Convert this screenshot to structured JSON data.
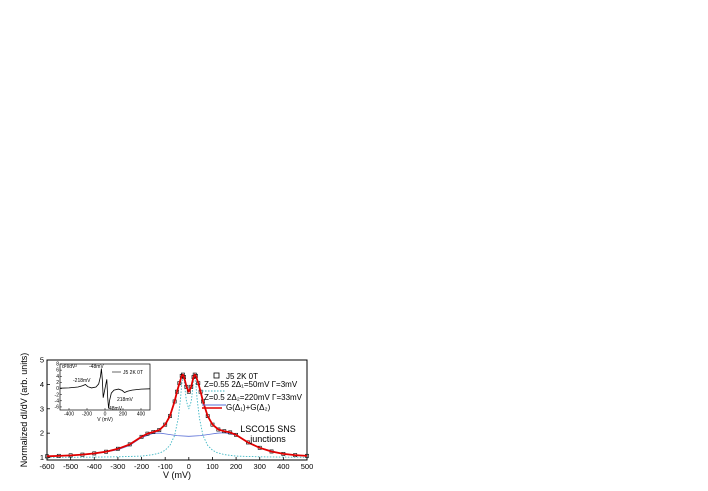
{
  "chart_data": [
    {
      "type": "line",
      "xlabel": "V (mV)",
      "ylabel": "Normalized dI/dV (arb. units)",
      "xlim": [
        -600,
        500
      ],
      "ylim": [
        0.9,
        5
      ],
      "xticks": [
        -600,
        -500,
        -400,
        -300,
        -200,
        -100,
        0,
        100,
        200,
        300,
        400,
        500
      ],
      "yticks": [
        1,
        2,
        3,
        4,
        5
      ],
      "grid": false,
      "legend_position": "right",
      "legend": [
        {
          "label": "J5  2K  0T",
          "style": "square-marker",
          "color": "#000000"
        },
        {
          "label": "Z=0.55  2Δ₁=50mV  Γ=3mV",
          "style": "dotted",
          "color": "#3fb7c4"
        },
        {
          "label": "Z=0.5  2Δ₂=220mV  Γ=33mV",
          "style": "solid",
          "color": "#5a6fd6"
        },
        {
          "label": "G(Δ₁)+G(Δ₂)",
          "style": "solid",
          "color": "#e00000"
        }
      ],
      "annotation": [
        "LSCO15 SNS",
        "junctions"
      ],
      "series": [
        {
          "name": "J5  2K  0T",
          "color": "#000000",
          "x": [
            -600,
            -550,
            -500,
            -450,
            -400,
            -350,
            -300,
            -250,
            -200,
            -175,
            -150,
            -125,
            -100,
            -80,
            -60,
            -50,
            -40,
            -30,
            -25,
            -20,
            -10,
            0,
            10,
            20,
            25,
            30,
            40,
            50,
            60,
            80,
            100,
            125,
            150,
            175,
            200,
            250,
            300,
            350,
            400,
            450,
            500
          ],
          "y": [
            1.05,
            1.07,
            1.09,
            1.12,
            1.17,
            1.24,
            1.36,
            1.54,
            1.85,
            1.98,
            2.05,
            2.13,
            2.35,
            2.7,
            3.3,
            3.7,
            4.05,
            4.35,
            4.4,
            4.3,
            3.9,
            3.7,
            3.9,
            4.3,
            4.4,
            4.35,
            4.05,
            3.7,
            3.3,
            2.7,
            2.35,
            2.15,
            2.08,
            2.03,
            1.93,
            1.62,
            1.4,
            1.25,
            1.15,
            1.1,
            1.07
          ]
        },
        {
          "name": "Z=0.55  2Δ₁=50mV  Γ=3mV",
          "color": "#3fb7c4",
          "x": [
            -600,
            -500,
            -400,
            -300,
            -200,
            -150,
            -120,
            -100,
            -80,
            -60,
            -45,
            -35,
            -30,
            -25,
            -20,
            -15,
            -10,
            0,
            10,
            15,
            20,
            25,
            30,
            35,
            45,
            60,
            80,
            100,
            120,
            150,
            200,
            300,
            400,
            500
          ],
          "y": [
            1.01,
            1.01,
            1.02,
            1.03,
            1.06,
            1.12,
            1.2,
            1.3,
            1.5,
            1.9,
            2.6,
            3.4,
            4.0,
            4.3,
            4.2,
            3.7,
            3.3,
            3.0,
            3.3,
            3.7,
            4.2,
            4.3,
            4.0,
            3.4,
            2.6,
            1.9,
            1.5,
            1.3,
            1.2,
            1.12,
            1.06,
            1.03,
            1.02,
            1.01
          ]
        },
        {
          "name": "Z=0.5  2Δ₂=220mV  Γ=33mV",
          "color": "#5a6fd6",
          "x": [
            -600,
            -500,
            -400,
            -300,
            -250,
            -200,
            -150,
            -120,
            -100,
            -50,
            0,
            50,
            100,
            120,
            150,
            200,
            250,
            300,
            400,
            500
          ],
          "y": [
            1.05,
            1.08,
            1.15,
            1.32,
            1.5,
            1.82,
            2.0,
            2.0,
            1.97,
            1.9,
            1.87,
            1.9,
            1.97,
            2.0,
            2.02,
            1.92,
            1.62,
            1.4,
            1.15,
            1.07
          ]
        },
        {
          "name": "G(Δ₁)+G(Δ₂)",
          "color": "#e00000",
          "x": [
            -600,
            -550,
            -500,
            -450,
            -400,
            -350,
            -300,
            -250,
            -200,
            -175,
            -150,
            -125,
            -100,
            -80,
            -60,
            -50,
            -40,
            -30,
            -25,
            -20,
            -10,
            0,
            10,
            20,
            25,
            30,
            40,
            50,
            60,
            80,
            100,
            125,
            150,
            175,
            200,
            250,
            300,
            350,
            400,
            450,
            500
          ],
          "y": [
            1.05,
            1.07,
            1.09,
            1.12,
            1.17,
            1.24,
            1.36,
            1.54,
            1.85,
            1.98,
            2.05,
            2.13,
            2.35,
            2.7,
            3.3,
            3.7,
            4.05,
            4.35,
            4.4,
            4.3,
            3.9,
            3.7,
            3.9,
            4.3,
            4.4,
            4.35,
            4.05,
            3.7,
            3.3,
            2.7,
            2.35,
            2.15,
            2.08,
            2.03,
            1.93,
            1.62,
            1.4,
            1.25,
            1.15,
            1.1,
            1.07
          ]
        }
      ]
    },
    {
      "type": "line",
      "inset": true,
      "ylabel": "d²I/dV²",
      "xlabel": "V (mV)",
      "xlim": [
        -500,
        500
      ],
      "ylim": [
        -7,
        8
      ],
      "xticks": [
        -400,
        -200,
        0,
        200,
        400
      ],
      "yticks": [
        -6,
        -4,
        -2,
        0,
        2,
        4,
        6,
        8
      ],
      "legend": [
        {
          "label": "J5  2K  0T",
          "color": "#000000"
        }
      ],
      "annotations": [
        "-48mV",
        "-218mV",
        "218mV",
        "48mV"
      ],
      "series": [
        {
          "name": "J5  2K  0T",
          "color": "#000000",
          "x": [
            -500,
            -400,
            -300,
            -250,
            -218,
            -190,
            -150,
            -100,
            -70,
            -50,
            -40,
            -30,
            -20,
            -10,
            0,
            10,
            20,
            30,
            40,
            50,
            70,
            100,
            150,
            190,
            218,
            250,
            300,
            400,
            500
          ],
          "y": [
            0.1,
            0.2,
            0.5,
            0.9,
            1.3,
            0.6,
            0.2,
            0.5,
            1.5,
            4,
            6.5,
            3,
            -3,
            -1.5,
            0,
            1.5,
            3,
            -3,
            -6.5,
            -4,
            -1.5,
            -0.5,
            -0.2,
            -0.6,
            -1.3,
            -0.9,
            -0.5,
            -0.2,
            -0.1
          ]
        }
      ]
    }
  ]
}
